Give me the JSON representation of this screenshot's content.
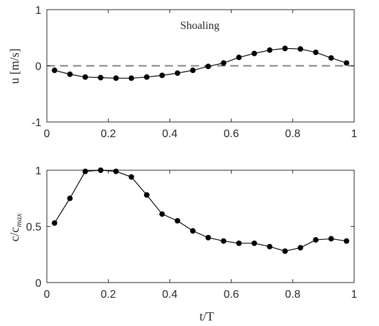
{
  "chart_data": [
    {
      "type": "line",
      "annotation": "Shoaling",
      "ylabel": "u [m/s]",
      "xlim": [
        0,
        1
      ],
      "ylim": [
        -1,
        1
      ],
      "xticks": [
        "0",
        "0.2",
        "0.4",
        "0.6",
        "0.8",
        "1"
      ],
      "yticks": [
        "-1",
        "0",
        "1"
      ],
      "reference_line_y": 0,
      "series": [
        {
          "x": [
            0.025,
            0.075,
            0.125,
            0.175,
            0.225,
            0.275,
            0.325,
            0.375,
            0.425,
            0.475,
            0.525,
            0.575,
            0.625,
            0.675,
            0.725,
            0.775,
            0.825,
            0.875,
            0.925,
            0.975
          ],
          "values": [
            -0.08,
            -0.15,
            -0.2,
            -0.21,
            -0.22,
            -0.22,
            -0.2,
            -0.17,
            -0.13,
            -0.08,
            -0.01,
            0.05,
            0.15,
            0.22,
            0.28,
            0.31,
            0.3,
            0.24,
            0.14,
            0.05
          ]
        }
      ]
    },
    {
      "type": "line",
      "xlabel": "t/T",
      "ylabel_main": "c/c",
      "ylabel_sub": "max",
      "xlim": [
        0,
        1
      ],
      "ylim": [
        0,
        1
      ],
      "xticks": [
        "0",
        "0.2",
        "0.4",
        "0.6",
        "0.8",
        "1"
      ],
      "yticks": [
        "0",
        "0.5",
        "1"
      ],
      "series": [
        {
          "x": [
            0.025,
            0.075,
            0.125,
            0.175,
            0.225,
            0.275,
            0.325,
            0.375,
            0.425,
            0.475,
            0.525,
            0.575,
            0.625,
            0.675,
            0.725,
            0.775,
            0.825,
            0.875,
            0.925,
            0.975
          ],
          "values": [
            0.53,
            0.75,
            0.99,
            1.0,
            0.99,
            0.94,
            0.78,
            0.61,
            0.55,
            0.46,
            0.4,
            0.37,
            0.35,
            0.35,
            0.32,
            0.28,
            0.31,
            0.38,
            0.39,
            0.37
          ]
        }
      ]
    }
  ]
}
